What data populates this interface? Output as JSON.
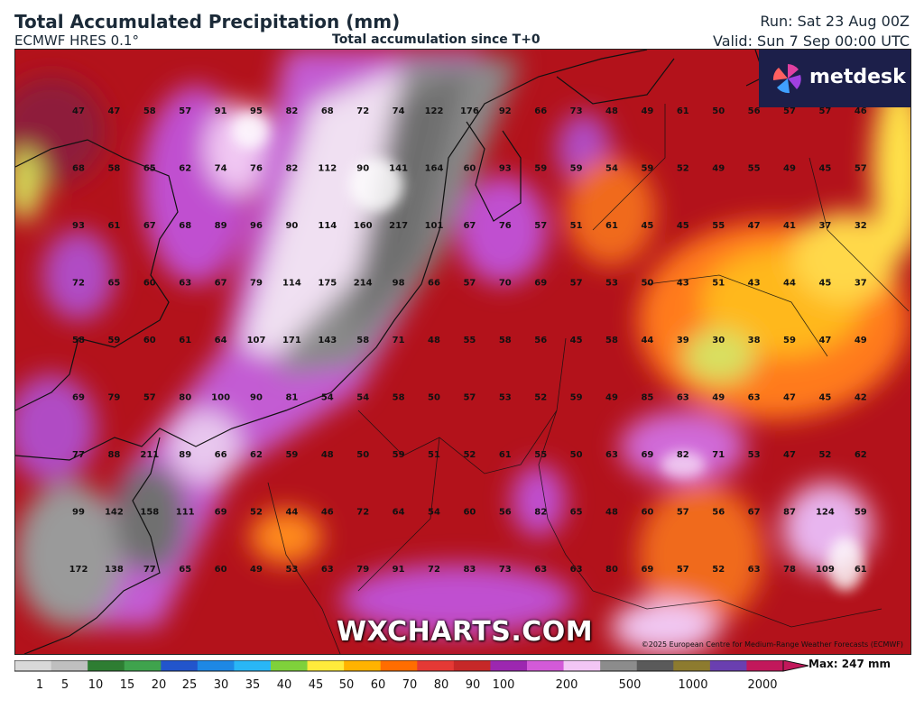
{
  "header": {
    "title": "Total Accumulated Precipitation (mm)",
    "model": "ECMWF HRES 0.1°",
    "subtitle": "Total accumulation since T+0",
    "run": "Run: Sat 23 Aug 00Z",
    "valid": "Valid: Sun 7 Sep 00:00 UTC"
  },
  "branding": {
    "logo_text": "metdesk",
    "watermark": "WXCHARTS.COM",
    "copyright": "©2025 European Centre for Medium-Range Weather Forecasts (ECMWF)"
  },
  "legend": {
    "max_label": "Max: 247 mm",
    "ticks": [
      "1",
      "5",
      "10",
      "15",
      "20",
      "25",
      "30",
      "35",
      "40",
      "45",
      "50",
      "60",
      "70",
      "80",
      "90",
      "100",
      "200",
      "500",
      "1000",
      "2000"
    ],
    "colors": [
      "#d9d9d9",
      "#bfbfbf",
      "#2e7d32",
      "#3fa34d",
      "#2255cc",
      "#1e88e5",
      "#29b6f6",
      "#7fd13b",
      "#ffeb3b",
      "#ffb300",
      "#ff6d00",
      "#e53935",
      "#c62828",
      "#9c27b0",
      "#d35ad8",
      "#f3c6f5",
      "#8c8c8c",
      "#5a5a5a",
      "#8d7b2f",
      "#6a3fb0",
      "#c2185b"
    ]
  },
  "map_values": [
    [
      "47",
      "47",
      "58",
      "57",
      "91",
      "95",
      "82",
      "68",
      "72",
      "74",
      "122",
      "176",
      "92",
      "66",
      "73",
      "48",
      "49",
      "61",
      "50",
      "56",
      "57",
      "57",
      "46"
    ],
    [
      "68",
      "58",
      "65",
      "62",
      "74",
      "76",
      "82",
      "112",
      "90",
      "141",
      "164",
      "60",
      "93",
      "59",
      "59",
      "54",
      "59",
      "52",
      "49",
      "55",
      "49",
      "45",
      "57"
    ],
    [
      "93",
      "61",
      "67",
      "68",
      "89",
      "96",
      "90",
      "114",
      "160",
      "217",
      "101",
      "67",
      "76",
      "57",
      "51",
      "61",
      "45",
      "45",
      "55",
      "47",
      "41",
      "37",
      "32"
    ],
    [
      "72",
      "65",
      "60",
      "63",
      "67",
      "79",
      "114",
      "175",
      "214",
      "98",
      "66",
      "57",
      "70",
      "69",
      "57",
      "53",
      "50",
      "43",
      "51",
      "43",
      "44",
      "45",
      "37"
    ],
    [
      "58",
      "59",
      "60",
      "61",
      "64",
      "107",
      "171",
      "143",
      "58",
      "71",
      "48",
      "55",
      "58",
      "56",
      "45",
      "58",
      "44",
      "39",
      "30",
      "38",
      "59",
      "47",
      "49"
    ],
    [
      "69",
      "79",
      "57",
      "80",
      "100",
      "90",
      "81",
      "54",
      "54",
      "58",
      "50",
      "57",
      "53",
      "52",
      "59",
      "49",
      "85",
      "63",
      "49",
      "63",
      "47",
      "45",
      "42"
    ],
    [
      "77",
      "88",
      "211",
      "89",
      "66",
      "62",
      "59",
      "48",
      "50",
      "59",
      "51",
      "52",
      "61",
      "55",
      "50",
      "63",
      "69",
      "82",
      "71",
      "53",
      "47",
      "52",
      "62"
    ],
    [
      "99",
      "142",
      "158",
      "111",
      "69",
      "52",
      "44",
      "46",
      "72",
      "64",
      "54",
      "60",
      "56",
      "82",
      "65",
      "48",
      "60",
      "57",
      "56",
      "67",
      "87",
      "124",
      "59"
    ],
    [
      "172",
      "138",
      "77",
      "65",
      "60",
      "49",
      "53",
      "63",
      "79",
      "91",
      "72",
      "83",
      "73",
      "63",
      "63",
      "80",
      "69",
      "57",
      "52",
      "63",
      "78",
      "109",
      "61"
    ]
  ]
}
